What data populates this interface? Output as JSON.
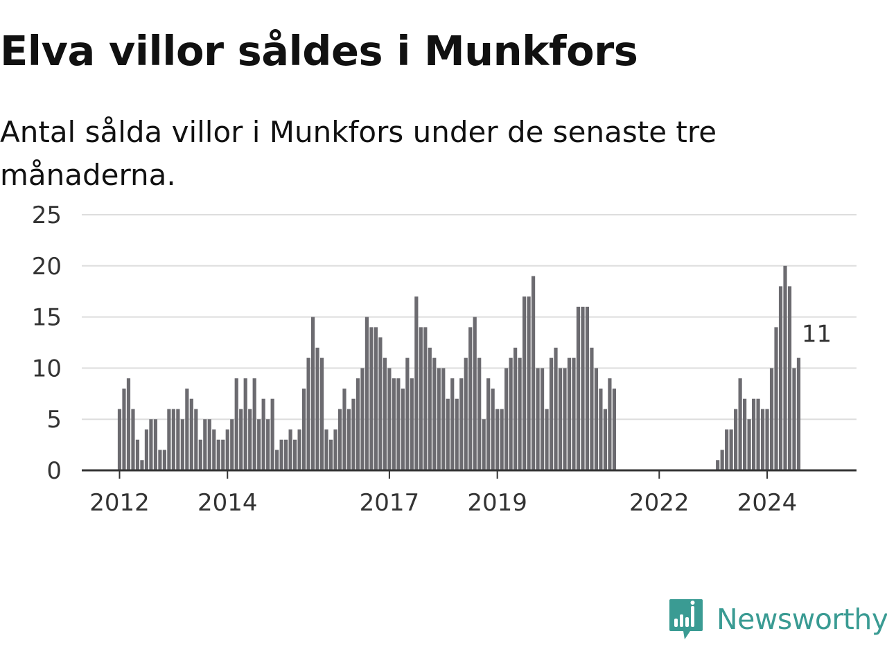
{
  "title": "Elva villor såldes i Munkfors",
  "subtitle": "Antal sålda villor i Munkfors under de senaste tre månaderna.",
  "brand": "Newsworthy",
  "colors": {
    "bar": "#6c6b70",
    "highlight": "#25a59a",
    "brand": "#3a9b93"
  },
  "chart_data": {
    "type": "bar",
    "title": "Elva villor såldes i Munkfors",
    "subtitle": "Antal sålda villor i Munkfors under de senaste tre månaderna.",
    "xlabel": "",
    "ylabel": "",
    "ylim": [
      0,
      25
    ],
    "yticks": [
      0,
      5,
      10,
      15,
      20,
      25
    ],
    "xticks": [
      {
        "label": "2012",
        "index": 0
      },
      {
        "label": "2014",
        "index": 24
      },
      {
        "label": "2017",
        "index": 60
      },
      {
        "label": "2019",
        "index": 84
      },
      {
        "label": "2022",
        "index": 120
      },
      {
        "label": "2024",
        "index": 144
      }
    ],
    "x_granularity": "month",
    "start": "2012-01",
    "grid": true,
    "highlight": {
      "index": 155,
      "label": "11",
      "value": 11
    },
    "values": [
      6,
      8,
      9,
      6,
      3,
      1,
      4,
      5,
      5,
      2,
      2,
      6,
      6,
      6,
      5,
      8,
      7,
      6,
      3,
      5,
      5,
      4,
      3,
      3,
      4,
      5,
      9,
      6,
      9,
      6,
      9,
      5,
      7,
      5,
      7,
      2,
      3,
      3,
      4,
      3,
      4,
      8,
      11,
      15,
      12,
      11,
      4,
      3,
      4,
      6,
      8,
      6,
      7,
      9,
      10,
      15,
      14,
      14,
      13,
      11,
      10,
      9,
      9,
      8,
      11,
      9,
      17,
      14,
      14,
      12,
      11,
      10,
      10,
      7,
      9,
      7,
      9,
      11,
      14,
      15,
      11,
      5,
      9,
      8,
      6,
      6,
      10,
      11,
      12,
      11,
      17,
      17,
      19,
      10,
      10,
      6,
      11,
      12,
      10,
      10,
      11,
      11,
      16,
      16,
      16,
      12,
      10,
      8,
      6,
      9,
      8,
      0,
      0,
      0,
      0,
      0,
      0,
      0,
      0,
      0,
      0,
      0,
      0,
      0,
      0,
      0,
      0,
      0,
      0,
      0,
      0,
      0,
      0,
      1,
      2,
      4,
      4,
      6,
      9,
      7,
      5,
      7,
      7,
      6,
      6,
      10,
      14,
      18,
      20,
      18,
      10,
      11
    ]
  }
}
